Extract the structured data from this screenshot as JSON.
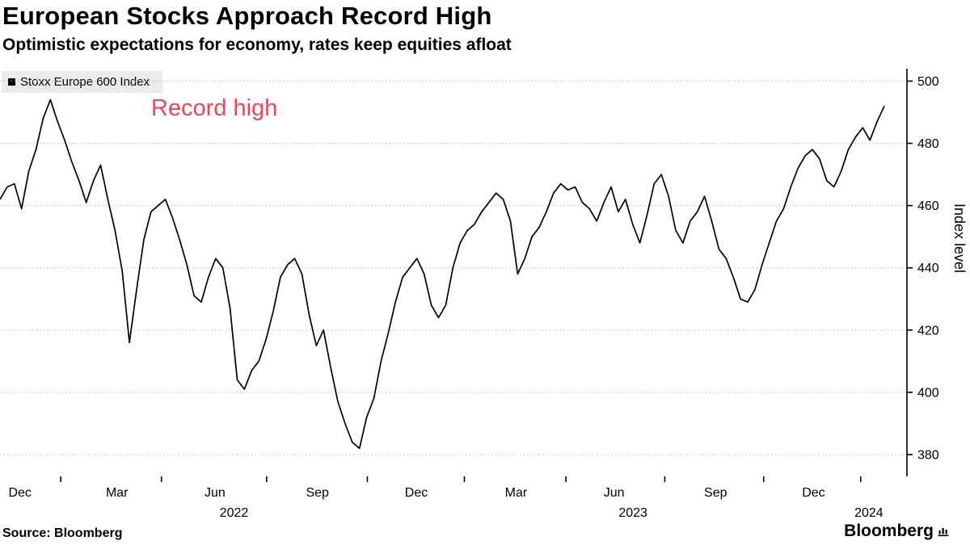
{
  "header": {
    "title": "European Stocks Approach Record High",
    "subtitle": "Optimistic expectations for economy, rates keep equities afloat"
  },
  "legend": {
    "label": "Stoxx Europe 600 Index",
    "marker_color": "#000000"
  },
  "annotation": {
    "text": "Record high",
    "color": "#fb4156"
  },
  "footer": {
    "source_label": "Source: Bloomberg",
    "brand": "Bloomberg"
  },
  "chart_data": {
    "type": "line",
    "title": "European Stocks Approach Record High",
    "subtitle": "Optimistic expectations for economy, rates keep equities afloat",
    "xlabel": "",
    "ylabel": "Index level",
    "ylim": [
      373,
      504
    ],
    "yticks": [
      380,
      400,
      420,
      440,
      460,
      480,
      500
    ],
    "grid": "horizontal-dotted",
    "legend_position": "top-left",
    "xticks": [
      {
        "label": "Dec",
        "f": 0.022
      },
      {
        "label": "Mar",
        "f": 0.129
      },
      {
        "label": "Jun",
        "f": 0.237
      },
      {
        "label": "Sep",
        "f": 0.35
      },
      {
        "label": "Dec",
        "f": 0.459
      },
      {
        "label": "Mar",
        "f": 0.569
      },
      {
        "label": "Jun",
        "f": 0.677
      },
      {
        "label": "Sep",
        "f": 0.789
      },
      {
        "label": "Dec",
        "f": 0.897
      }
    ],
    "xticks_minor": [
      0.067,
      0.178,
      0.294,
      0.405,
      0.512,
      0.624,
      0.733,
      0.842,
      0.949
    ],
    "year_labels": [
      {
        "label": "2022",
        "f": 0.258
      },
      {
        "label": "2023",
        "f": 0.698
      },
      {
        "label": "2024",
        "f": 0.958
      }
    ],
    "x_end_fraction": 0.975,
    "series": [
      {
        "name": "Stoxx Europe 600 Index",
        "color": "#000000",
        "cadence": "weekly, late Nov 2021 - Feb 2024",
        "values": [
          462,
          466,
          467,
          459,
          471,
          478,
          488,
          494,
          487,
          481,
          474,
          468,
          461,
          468,
          473,
          462,
          452,
          439,
          416,
          433,
          449,
          458,
          460,
          462,
          456,
          449,
          441,
          431,
          429,
          437,
          443,
          440,
          427,
          404,
          401,
          407,
          410,
          417,
          426,
          437,
          441,
          443,
          438,
          425,
          415,
          420,
          408,
          397,
          390,
          384,
          382,
          392,
          398,
          410,
          419,
          429,
          437,
          440,
          443,
          438,
          428,
          424,
          428,
          440,
          448,
          452,
          454,
          458,
          461,
          464,
          462,
          455,
          438,
          443,
          450,
          453,
          458,
          464,
          467,
          465,
          466,
          461,
          459,
          455,
          461,
          466,
          458,
          462,
          454,
          448,
          457,
          467,
          470,
          463,
          452,
          448,
          455,
          458,
          463,
          455,
          446,
          443,
          437,
          430,
          429,
          433,
          441,
          448,
          455,
          459,
          466,
          472,
          476,
          478,
          475,
          468,
          466,
          471,
          478,
          482,
          485,
          481,
          487,
          492
        ]
      }
    ]
  }
}
